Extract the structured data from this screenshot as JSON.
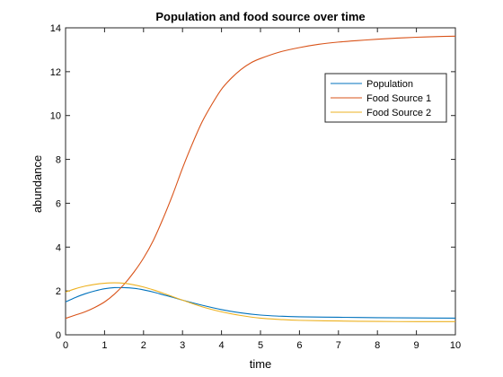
{
  "chart_data": {
    "type": "line",
    "title": "Population and food source over time",
    "xlabel": "time",
    "ylabel": "abundance",
    "xlim": [
      0,
      10
    ],
    "ylim": [
      0,
      14
    ],
    "xticks": [
      0,
      1,
      2,
      3,
      4,
      5,
      6,
      7,
      8,
      9,
      10
    ],
    "yticks": [
      0,
      2,
      4,
      6,
      8,
      10,
      12,
      14
    ],
    "grid": false,
    "legend_position": "top-right",
    "series": [
      {
        "name": "Population",
        "color": "#0072BD",
        "x": [
          0,
          0.25,
          0.5,
          0.75,
          1,
          1.25,
          1.5,
          1.75,
          2,
          2.25,
          2.5,
          2.75,
          3,
          3.5,
          4,
          4.5,
          5,
          5.5,
          6,
          7,
          8,
          9,
          10
        ],
        "y": [
          1.5,
          1.7,
          1.87,
          2.0,
          2.1,
          2.15,
          2.15,
          2.12,
          2.05,
          1.95,
          1.83,
          1.71,
          1.58,
          1.35,
          1.15,
          1.0,
          0.9,
          0.85,
          0.82,
          0.8,
          0.78,
          0.77,
          0.76
        ]
      },
      {
        "name": "Food Source 1",
        "color": "#D95319",
        "x": [
          0,
          0.25,
          0.5,
          0.75,
          1,
          1.25,
          1.5,
          1.75,
          2,
          2.25,
          2.5,
          2.75,
          3,
          3.25,
          3.5,
          3.75,
          4,
          4.25,
          4.5,
          4.75,
          5,
          5.5,
          6,
          6.5,
          7,
          7.5,
          8,
          8.5,
          9,
          9.5,
          10
        ],
        "y": [
          0.75,
          0.9,
          1.05,
          1.25,
          1.5,
          1.85,
          2.3,
          2.85,
          3.5,
          4.3,
          5.3,
          6.4,
          7.6,
          8.7,
          9.7,
          10.5,
          11.2,
          11.7,
          12.1,
          12.4,
          12.6,
          12.9,
          13.1,
          13.25,
          13.35,
          13.42,
          13.48,
          13.53,
          13.57,
          13.6,
          13.62
        ]
      },
      {
        "name": "Food Source 2",
        "color": "#EDB120",
        "x": [
          0,
          0.25,
          0.5,
          0.75,
          1,
          1.25,
          1.5,
          1.75,
          2,
          2.25,
          2.5,
          2.75,
          3,
          3.5,
          4,
          4.5,
          5,
          5.5,
          6,
          7,
          8,
          9,
          10
        ],
        "y": [
          1.95,
          2.1,
          2.22,
          2.3,
          2.35,
          2.37,
          2.35,
          2.28,
          2.18,
          2.05,
          1.9,
          1.74,
          1.58,
          1.28,
          1.05,
          0.88,
          0.76,
          0.7,
          0.66,
          0.63,
          0.61,
          0.6,
          0.6
        ]
      }
    ]
  }
}
